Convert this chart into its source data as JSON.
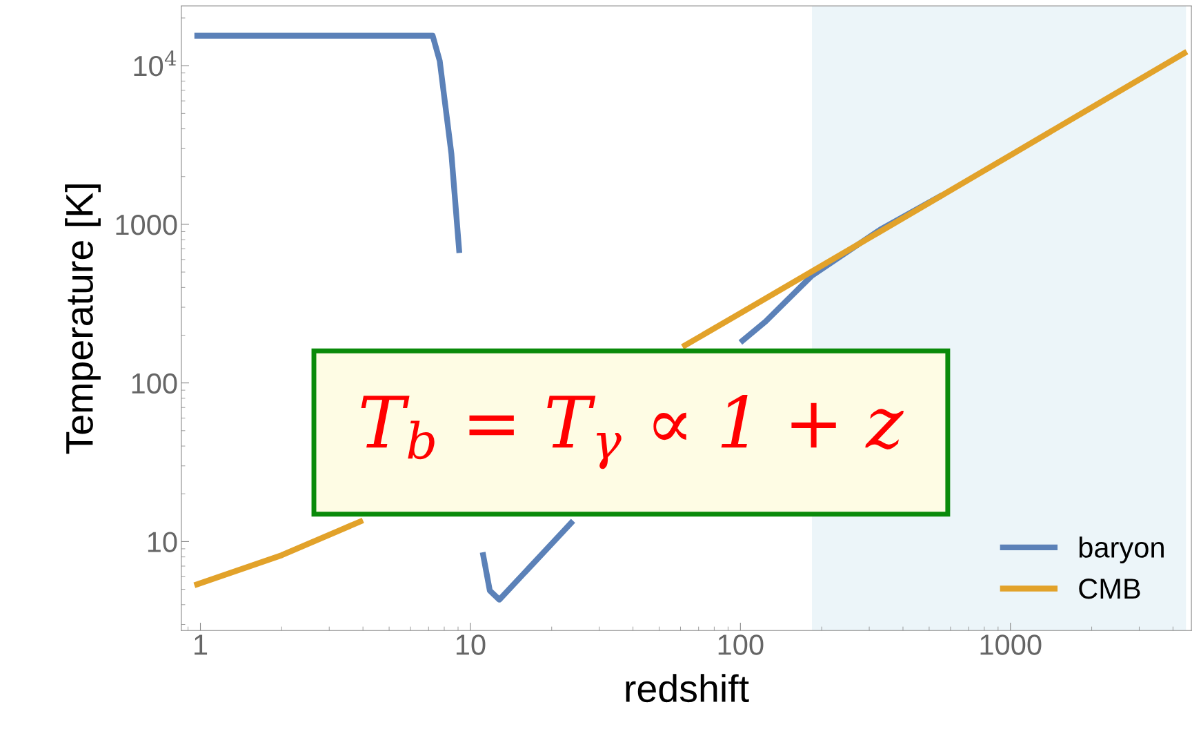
{
  "chart_data": {
    "type": "line",
    "xlabel": "redshift",
    "ylabel": "Temperature [K]",
    "log": "xy",
    "xlim": [
      0.85,
      4680
    ],
    "ylim": [
      2.75,
      23800
    ],
    "xticks": [
      1,
      10,
      100,
      1000
    ],
    "yticks": [
      10,
      100,
      1000,
      {
        "value": 10000,
        "label": "10$^{4}$"
      }
    ],
    "grid": false,
    "legend": "bottom right",
    "series": [
      {
        "name": "baryon",
        "color": "#5b81b8",
        "x": [
          0.95,
          2,
          4,
          7.25,
          7.7,
          8.5,
          9.1,
          10,
          10.6,
          11.1,
          11.8,
          12.8,
          17.5,
          24,
          60,
          100,
          124,
          184,
          330,
          560
        ],
        "values": [
          15450,
          15450,
          15450,
          15450,
          10700,
          2800,
          660,
          null,
          null,
          8.55,
          4.9,
          4.3,
          7.6,
          13.5,
          null,
          180,
          244,
          475,
          927,
          1530
        ]
      },
      {
        "name": "CMB",
        "color": "#e2a22a",
        "x": [
          0.95,
          2,
          4,
          10,
          40,
          61,
          100,
          200,
          500,
          1000,
          2000,
          4500
        ],
        "values": [
          5.3,
          8.2,
          13.6,
          null,
          null,
          169,
          275,
          548,
          1365,
          2728,
          5453,
          12265
        ]
      }
    ],
    "bands": [
      {
        "axis": "x",
        "from": 184,
        "to": 4470,
        "color": "#ecf5f9"
      }
    ],
    "annotations": [
      {
        "text": "T$_{b}$ = T$_{γ}$ ∝ 1 + z"
      }
    ]
  }
}
